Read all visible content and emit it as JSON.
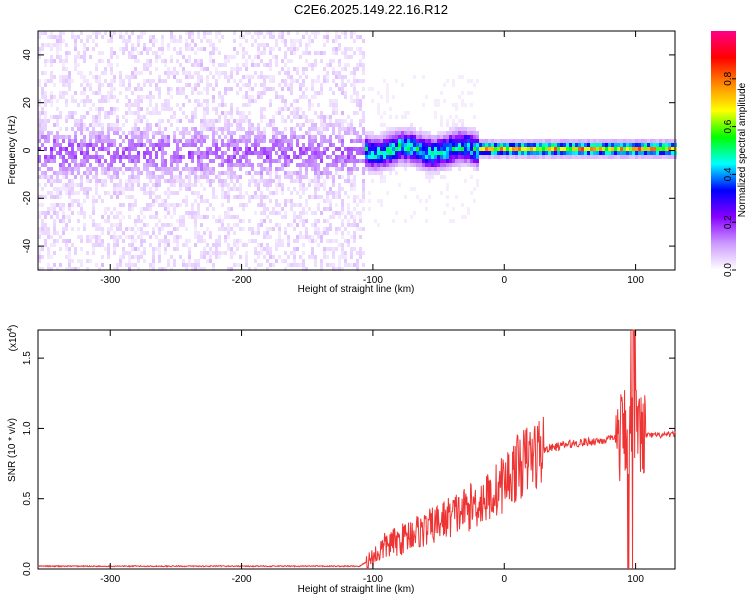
{
  "title": "C2E6.2025.149.22.16.R12",
  "chart_data": [
    {
      "type": "heatmap",
      "name": "spectrogram",
      "xlabel": "Height of straight line (km)",
      "ylabel": "Frequency (Hz)",
      "xlim": [
        -355,
        130
      ],
      "ylim": [
        -50,
        50
      ],
      "x_ticks": [
        -300,
        -200,
        -100,
        0,
        100
      ],
      "y_ticks": [
        -40,
        -20,
        0,
        20,
        40
      ],
      "x_tick_labels": [
        "-300",
        "-200",
        "-100",
        "0",
        "100"
      ],
      "y_tick_labels": [
        "-40",
        "-20",
        "0",
        "20",
        "40"
      ],
      "colorbar": {
        "label": "Normalized spectral amplitude",
        "range": [
          0,
          1
        ],
        "ticks": [
          0.0,
          0.2,
          0.4,
          0.6,
          0.8
        ],
        "tick_labels": [
          "0.0",
          "0.2",
          "0.4",
          "0.6",
          "0.8"
        ],
        "colormap": [
          "#ffffff",
          "#cc99ff",
          "#8800ff",
          "#0000ff",
          "#00ffff",
          "#00ff00",
          "#ffff00",
          "#ff8800",
          "#ff0000",
          "#ff0088"
        ]
      },
      "features": [
        {
          "x_range": [
            -355,
            -108
          ],
          "description_level": 0.1,
          "noise_band_hz": [
            -50,
            50
          ],
          "core_band_hz": [
            -10,
            10
          ],
          "core_level": 0.12
        },
        {
          "x_range": [
            -108,
            -20
          ],
          "core_band_hz": [
            -6,
            8
          ],
          "core_level": 0.45
        },
        {
          "x_range": [
            -20,
            130
          ],
          "core_band_hz": [
            -2,
            4
          ],
          "core_level": 0.75
        }
      ]
    },
    {
      "type": "line",
      "name": "snr",
      "xlabel": "Height of straight line (km)",
      "ylabel": "SNR (10 * v/v)",
      "y_scale_label": "(x10",
      "y_scale_exp": "4",
      "xlim": [
        -355,
        130
      ],
      "ylim": [
        0,
        1.7
      ],
      "x_ticks": [
        -300,
        -200,
        -100,
        0,
        100
      ],
      "y_ticks": [
        0.0,
        0.5,
        1.0,
        1.5
      ],
      "x_tick_labels": [
        "-300",
        "-200",
        "-100",
        "0",
        "100"
      ],
      "y_tick_labels": [
        "0.0",
        "0.5",
        "1.0",
        "1.5"
      ],
      "color": "#ee3333",
      "series": [
        {
          "x": [
            -355,
            -300,
            -250,
            -200,
            -150,
            -110,
            -100,
            -90,
            -80,
            -70,
            -60,
            -50,
            -40,
            -30,
            -20,
            -10,
            0,
            10,
            20,
            30,
            40,
            50,
            60,
            70,
            80,
            88,
            92,
            96,
            98,
            100,
            104,
            110,
            120,
            130
          ],
          "y": [
            0.02,
            0.02,
            0.02,
            0.02,
            0.02,
            0.02,
            0.08,
            0.17,
            0.2,
            0.26,
            0.28,
            0.33,
            0.38,
            0.42,
            0.47,
            0.52,
            0.62,
            0.72,
            0.8,
            0.85,
            0.87,
            0.89,
            0.9,
            0.91,
            0.92,
            0.93,
            0.98,
            1.0,
            0.9,
            0.95,
            0.95,
            0.95,
            0.95,
            0.96
          ]
        }
      ]
    }
  ]
}
